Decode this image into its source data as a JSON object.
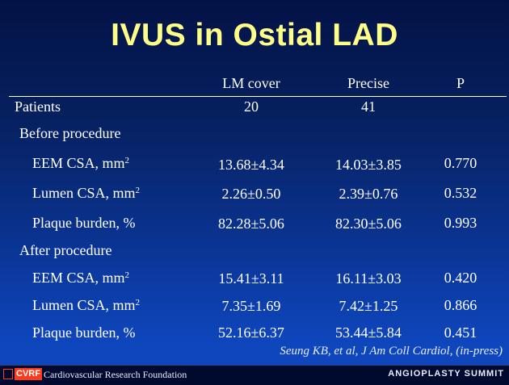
{
  "slide": {
    "title": "IVUS in Ostial LAD",
    "columns": [
      "LM cover",
      "Precise",
      "P"
    ],
    "patients": {
      "label": "Patients",
      "values": [
        "20",
        "41"
      ]
    },
    "sections": [
      {
        "label": "Before procedure",
        "rows": [
          {
            "label": "EEM CSA, mm",
            "unit_sup": "2",
            "values": [
              "13.68±4.34",
              "14.03±3.85",
              "0.770"
            ]
          },
          {
            "label": "Lumen CSA, mm",
            "unit_sup": "2",
            "values": [
              "2.26±0.50",
              "2.39±0.76",
              "0.532"
            ]
          },
          {
            "label": "Plaque burden, %",
            "unit_sup": "",
            "values": [
              "82.28±5.06",
              "82.30±5.06",
              "0.993"
            ]
          }
        ]
      },
      {
        "label": "After procedure",
        "rows": [
          {
            "label": "EEM CSA, mm",
            "unit_sup": "2",
            "values": [
              "15.41±3.11",
              "16.11±3.03",
              "0.420"
            ]
          },
          {
            "label": "Lumen CSA, mm",
            "unit_sup": "2",
            "values": [
              "7.35±1.69",
              "7.42±1.25",
              "0.866"
            ]
          },
          {
            "label": "Plaque burden, %",
            "unit_sup": "",
            "values": [
              "52.16±6.37",
              "53.44±5.84",
              "0.451"
            ]
          }
        ]
      }
    ],
    "citation": "Seung KB, et al, J Am Coll Cardiol, (in-press)"
  },
  "footer": {
    "logo_text": "CVRF",
    "organization": "Cardiovascular Research Foundation",
    "event": "ANGIOPLASTY SUMMIT"
  },
  "colors": {
    "title": "#ffff88",
    "text": "#ffffff",
    "background_top": "#031246",
    "background_bottom": "#1048c0",
    "logo_accent": "#ff3b1f"
  }
}
